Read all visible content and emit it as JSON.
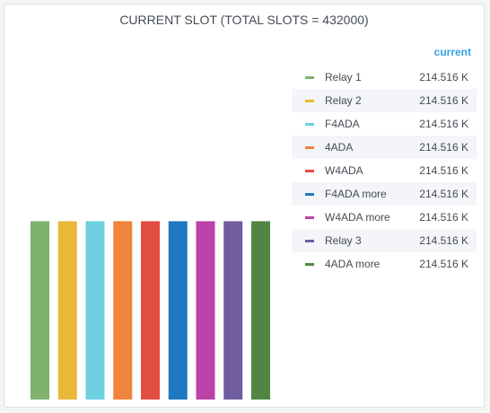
{
  "panel": {
    "title": "CURRENT SLOT (TOTAL SLOTS = 432000)"
  },
  "legend": {
    "header": "current"
  },
  "chart_data": {
    "type": "bar",
    "categories": [
      "Relay 1",
      "Relay 2",
      "F4ADA",
      "4ADA",
      "W4ADA",
      "F4ADA more",
      "W4ADA more",
      "Relay 3",
      "4ADA more"
    ],
    "values": [
      214516,
      214516,
      214516,
      214516,
      214516,
      214516,
      214516,
      214516,
      214516
    ],
    "value_labels": [
      "214.516 K",
      "214.516 K",
      "214.516 K",
      "214.516 K",
      "214.516 K",
      "214.516 K",
      "214.516 K",
      "214.516 K",
      "214.516 K"
    ],
    "colors": [
      "#7eb26d",
      "#eab839",
      "#6ed0e0",
      "#ef843c",
      "#e24d42",
      "#1f78c1",
      "#ba43a9",
      "#705da0",
      "#508642"
    ],
    "title": "CURRENT SLOT (TOTAL SLOTS = 432000)",
    "ylim": [
      0,
      432000
    ],
    "grid": false,
    "legend_position": "right"
  }
}
